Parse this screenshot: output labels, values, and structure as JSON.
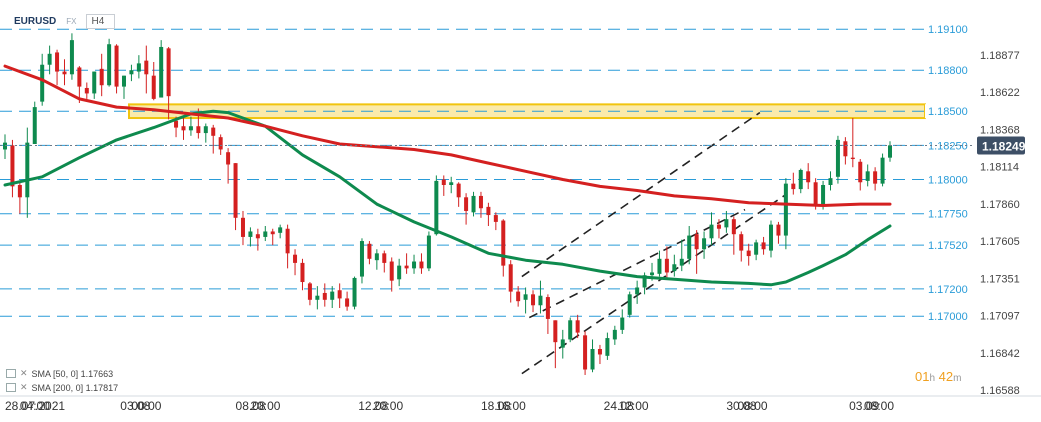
{
  "header": {
    "symbol": "EURUSD",
    "market": "FX",
    "timeframe": "H4"
  },
  "indicators": [
    {
      "label": "SMA [50, 0] 1.17663",
      "color": "#0e8a4e"
    },
    {
      "label": "SMA [200, 0] 1.17817",
      "color": "#d42020"
    }
  ],
  "countdown": {
    "hours": "01",
    "h_unit": "h",
    "minutes": "42",
    "m_unit": "m"
  },
  "colors": {
    "bull": "#0e8a4e",
    "bear": "#d42020",
    "level": "#2a9cd8",
    "zone": "#f1c40f",
    "price": "#3d4f66"
  },
  "chart_data": {
    "type": "candlestick",
    "title": "",
    "xlabel": "",
    "ylabel": "",
    "ylim": [
      1.1646,
      1.1916
    ],
    "grid": false,
    "y_tick_labels": [
      "1.18877",
      "1.18622",
      "1.18368",
      "1.18114",
      "1.17860",
      "1.17605",
      "1.17351",
      "1.17097",
      "1.16842",
      "1.16588"
    ],
    "x_tick_labels": [
      "28.07.2021",
      "04:00",
      "03.08",
      "00:00",
      "08.08",
      "20:00",
      "12.08",
      "20:00",
      "18.08",
      "16:00",
      "24.08",
      "12:00",
      "30.08",
      "08:00",
      "03.09",
      "08:00"
    ],
    "x_tick_positions": [
      0,
      4,
      31,
      34,
      62,
      66,
      95,
      99,
      128,
      132,
      161,
      165,
      194,
      197,
      227,
      231
    ],
    "levels": [
      {
        "value": 1.191,
        "label": "1.19100"
      },
      {
        "value": 1.188,
        "label": "1.18800"
      },
      {
        "value": 1.185,
        "label": "1.18500"
      },
      {
        "value": 1.1825,
        "label": "1.18250"
      },
      {
        "value": 1.18,
        "label": "1.18000"
      },
      {
        "value": 1.1775,
        "label": "1.17750"
      },
      {
        "value": 1.1752,
        "label": "1.17520"
      },
      {
        "value": 1.172,
        "label": "1.17200"
      },
      {
        "value": 1.17,
        "label": "1.17000"
      }
    ],
    "zone": {
      "low": 1.1845,
      "high": 1.1855
    },
    "current_price": {
      "value": 1.18249,
      "label": "1.18249"
    },
    "channel": {
      "lower": [
        [
          139,
          1.1658
        ],
        [
          210,
          1.1789
        ]
      ],
      "upper": [
        [
          139,
          1.1729
        ],
        [
          203,
          1.1849
        ]
      ],
      "middle": [
        [
          141,
          1.1699
        ],
        [
          199,
          1.1778
        ]
      ]
    },
    "candles": [
      {
        "i": 0,
        "o": 1.1822,
        "c": 1.1827,
        "h": 1.1833,
        "l": 1.1815
      },
      {
        "i": 2,
        "o": 1.1825,
        "c": 1.1795,
        "h": 1.1829,
        "l": 1.1787
      },
      {
        "i": 4,
        "o": 1.1796,
        "c": 1.1787,
        "h": 1.1798,
        "l": 1.1775
      },
      {
        "i": 6,
        "o": 1.1787,
        "c": 1.1827,
        "h": 1.1838,
        "l": 1.1772
      },
      {
        "i": 8,
        "o": 1.1826,
        "c": 1.1853,
        "h": 1.1857,
        "l": 1.1826
      },
      {
        "i": 10,
        "o": 1.1857,
        "c": 1.1884,
        "h": 1.1892,
        "l": 1.1854
      },
      {
        "i": 12,
        "o": 1.1884,
        "c": 1.1892,
        "h": 1.1898,
        "l": 1.1877
      },
      {
        "i": 14,
        "o": 1.1893,
        "c": 1.1879,
        "h": 1.1895,
        "l": 1.1869
      },
      {
        "i": 16,
        "o": 1.1879,
        "c": 1.1877,
        "h": 1.1888,
        "l": 1.1869
      },
      {
        "i": 18,
        "o": 1.1877,
        "c": 1.1902,
        "h": 1.1907,
        "l": 1.1873
      },
      {
        "i": 20,
        "o": 1.1882,
        "c": 1.1868,
        "h": 1.1883,
        "l": 1.1856
      },
      {
        "i": 22,
        "o": 1.1867,
        "c": 1.1863,
        "h": 1.1871,
        "l": 1.1859
      },
      {
        "i": 24,
        "o": 1.1863,
        "c": 1.1879,
        "h": 1.1879,
        "l": 1.1859
      },
      {
        "i": 26,
        "o": 1.1881,
        "c": 1.1869,
        "h": 1.1892,
        "l": 1.1861
      },
      {
        "i": 28,
        "o": 1.1869,
        "c": 1.1899,
        "h": 1.1903,
        "l": 1.1868
      },
      {
        "i": 30,
        "o": 1.1898,
        "c": 1.1868,
        "h": 1.1899,
        "l": 1.1863
      },
      {
        "i": 32,
        "o": 1.1868,
        "c": 1.1876,
        "h": 1.1876,
        "l": 1.1859
      },
      {
        "i": 34,
        "o": 1.1877,
        "c": 1.188,
        "h": 1.1884,
        "l": 1.1872
      },
      {
        "i": 36,
        "o": 1.1879,
        "c": 1.1885,
        "h": 1.1891,
        "l": 1.1874
      },
      {
        "i": 38,
        "o": 1.1887,
        "c": 1.1877,
        "h": 1.1898,
        "l": 1.1863
      },
      {
        "i": 40,
        "o": 1.1876,
        "c": 1.1859,
        "h": 1.1886,
        "l": 1.1858
      },
      {
        "i": 42,
        "o": 1.186,
        "c": 1.1897,
        "h": 1.1902,
        "l": 1.186
      },
      {
        "i": 44,
        "o": 1.1896,
        "c": 1.1861,
        "h": 1.1897,
        "l": 1.1844
      },
      {
        "i": 46,
        "o": 1.1843,
        "c": 1.1838,
        "h": 1.1846,
        "l": 1.1831
      },
      {
        "i": 48,
        "o": 1.1839,
        "c": 1.1836,
        "h": 1.1846,
        "l": 1.1829
      },
      {
        "i": 50,
        "o": 1.1836,
        "c": 1.1839,
        "h": 1.1846,
        "l": 1.1832
      },
      {
        "i": 52,
        "o": 1.1839,
        "c": 1.1834,
        "h": 1.1852,
        "l": 1.183
      },
      {
        "i": 54,
        "o": 1.1834,
        "c": 1.1839,
        "h": 1.1841,
        "l": 1.1827
      },
      {
        "i": 56,
        "o": 1.1838,
        "c": 1.1832,
        "h": 1.184,
        "l": 1.1819
      },
      {
        "i": 58,
        "o": 1.1831,
        "c": 1.1822,
        "h": 1.1833,
        "l": 1.1818
      },
      {
        "i": 60,
        "o": 1.182,
        "c": 1.1811,
        "h": 1.1823,
        "l": 1.1797
      },
      {
        "i": 62,
        "o": 1.1812,
        "c": 1.1772,
        "h": 1.1812,
        "l": 1.1763
      },
      {
        "i": 64,
        "o": 1.1772,
        "c": 1.1758,
        "h": 1.1777,
        "l": 1.1752
      },
      {
        "i": 66,
        "o": 1.1758,
        "c": 1.1762,
        "h": 1.1765,
        "l": 1.1751
      },
      {
        "i": 68,
        "o": 1.176,
        "c": 1.1757,
        "h": 1.1764,
        "l": 1.1748
      },
      {
        "i": 70,
        "o": 1.1758,
        "c": 1.1762,
        "h": 1.1766,
        "l": 1.1755
      },
      {
        "i": 72,
        "o": 1.1762,
        "c": 1.176,
        "h": 1.1764,
        "l": 1.1752
      },
      {
        "i": 74,
        "o": 1.1761,
        "c": 1.1765,
        "h": 1.1767,
        "l": 1.1757
      },
      {
        "i": 76,
        "o": 1.1764,
        "c": 1.1746,
        "h": 1.1767,
        "l": 1.1735
      },
      {
        "i": 78,
        "o": 1.1745,
        "c": 1.1739,
        "h": 1.1749,
        "l": 1.173
      },
      {
        "i": 80,
        "o": 1.1739,
        "c": 1.1725,
        "h": 1.1742,
        "l": 1.1719
      },
      {
        "i": 82,
        "o": 1.1724,
        "c": 1.1712,
        "h": 1.1725,
        "l": 1.1708
      },
      {
        "i": 84,
        "o": 1.1712,
        "c": 1.1715,
        "h": 1.1722,
        "l": 1.1705
      },
      {
        "i": 86,
        "o": 1.1717,
        "c": 1.1712,
        "h": 1.1724,
        "l": 1.1707
      },
      {
        "i": 88,
        "o": 1.1712,
        "c": 1.1718,
        "h": 1.1722,
        "l": 1.1706
      },
      {
        "i": 90,
        "o": 1.1719,
        "c": 1.1713,
        "h": 1.1724,
        "l": 1.1706
      },
      {
        "i": 92,
        "o": 1.1713,
        "c": 1.1707,
        "h": 1.1718,
        "l": 1.1704
      },
      {
        "i": 94,
        "o": 1.1707,
        "c": 1.1728,
        "h": 1.1729,
        "l": 1.1705
      },
      {
        "i": 96,
        "o": 1.1729,
        "c": 1.1755,
        "h": 1.1757,
        "l": 1.1724
      },
      {
        "i": 98,
        "o": 1.1753,
        "c": 1.1742,
        "h": 1.1755,
        "l": 1.1738
      },
      {
        "i": 100,
        "o": 1.1741,
        "c": 1.1746,
        "h": 1.1749,
        "l": 1.1734
      },
      {
        "i": 102,
        "o": 1.1746,
        "c": 1.1739,
        "h": 1.1748,
        "l": 1.1732
      },
      {
        "i": 104,
        "o": 1.174,
        "c": 1.1726,
        "h": 1.1743,
        "l": 1.1718
      },
      {
        "i": 106,
        "o": 1.1727,
        "c": 1.1737,
        "h": 1.1742,
        "l": 1.1722
      },
      {
        "i": 108,
        "o": 1.1737,
        "c": 1.1735,
        "h": 1.1746,
        "l": 1.1731
      },
      {
        "i": 110,
        "o": 1.1735,
        "c": 1.174,
        "h": 1.1745,
        "l": 1.1731
      },
      {
        "i": 112,
        "o": 1.174,
        "c": 1.1735,
        "h": 1.1746,
        "l": 1.1731
      },
      {
        "i": 114,
        "o": 1.1735,
        "c": 1.1759,
        "h": 1.1762,
        "l": 1.1733
      },
      {
        "i": 116,
        "o": 1.176,
        "c": 1.1799,
        "h": 1.1803,
        "l": 1.1759
      },
      {
        "i": 118,
        "o": 1.18,
        "c": 1.1796,
        "h": 1.1803,
        "l": 1.1788
      },
      {
        "i": 120,
        "o": 1.1796,
        "c": 1.1798,
        "h": 1.1802,
        "l": 1.179
      },
      {
        "i": 122,
        "o": 1.1797,
        "c": 1.1787,
        "h": 1.1798,
        "l": 1.178
      },
      {
        "i": 124,
        "o": 1.1787,
        "c": 1.1777,
        "h": 1.179,
        "l": 1.1767
      },
      {
        "i": 126,
        "o": 1.1776,
        "c": 1.1788,
        "h": 1.1791,
        "l": 1.1773
      },
      {
        "i": 128,
        "o": 1.1788,
        "c": 1.1779,
        "h": 1.1791,
        "l": 1.1772
      },
      {
        "i": 130,
        "o": 1.178,
        "c": 1.1774,
        "h": 1.1783,
        "l": 1.1766
      },
      {
        "i": 132,
        "o": 1.1774,
        "c": 1.1769,
        "h": 1.1776,
        "l": 1.1763
      },
      {
        "i": 134,
        "o": 1.177,
        "c": 1.1737,
        "h": 1.1771,
        "l": 1.1729
      },
      {
        "i": 136,
        "o": 1.1738,
        "c": 1.1718,
        "h": 1.1741,
        "l": 1.171
      },
      {
        "i": 138,
        "o": 1.1718,
        "c": 1.1711,
        "h": 1.1722,
        "l": 1.1707
      },
      {
        "i": 140,
        "o": 1.1712,
        "c": 1.1716,
        "h": 1.1721,
        "l": 1.1702
      },
      {
        "i": 142,
        "o": 1.1716,
        "c": 1.1708,
        "h": 1.1719,
        "l": 1.1703
      },
      {
        "i": 144,
        "o": 1.1708,
        "c": 1.1715,
        "h": 1.1726,
        "l": 1.1702
      },
      {
        "i": 146,
        "o": 1.1714,
        "c": 1.1698,
        "h": 1.1716,
        "l": 1.1687
      },
      {
        "i": 148,
        "o": 1.1697,
        "c": 1.1681,
        "h": 1.1697,
        "l": 1.1662
      },
      {
        "i": 150,
        "o": 1.1677,
        "c": 1.1683,
        "h": 1.169,
        "l": 1.1669
      },
      {
        "i": 152,
        "o": 1.1683,
        "c": 1.1697,
        "h": 1.1699,
        "l": 1.1681
      },
      {
        "i": 154,
        "o": 1.1697,
        "c": 1.1688,
        "h": 1.1701,
        "l": 1.1684
      },
      {
        "i": 156,
        "o": 1.1686,
        "c": 1.1661,
        "h": 1.1689,
        "l": 1.1657
      },
      {
        "i": 158,
        "o": 1.1661,
        "c": 1.1676,
        "h": 1.1683,
        "l": 1.1659
      },
      {
        "i": 160,
        "o": 1.1676,
        "c": 1.1672,
        "h": 1.1679,
        "l": 1.1665
      },
      {
        "i": 162,
        "o": 1.1671,
        "c": 1.1684,
        "h": 1.1688,
        "l": 1.1668
      },
      {
        "i": 164,
        "o": 1.1683,
        "c": 1.169,
        "h": 1.1693,
        "l": 1.1679
      },
      {
        "i": 166,
        "o": 1.169,
        "c": 1.1699,
        "h": 1.1705,
        "l": 1.1687
      },
      {
        "i": 168,
        "o": 1.1701,
        "c": 1.1716,
        "h": 1.1718,
        "l": 1.1699
      },
      {
        "i": 170,
        "o": 1.1716,
        "c": 1.1721,
        "h": 1.1726,
        "l": 1.1709
      },
      {
        "i": 172,
        "o": 1.1721,
        "c": 1.173,
        "h": 1.1732,
        "l": 1.1716
      },
      {
        "i": 174,
        "o": 1.173,
        "c": 1.1732,
        "h": 1.1739,
        "l": 1.1726
      },
      {
        "i": 176,
        "o": 1.1731,
        "c": 1.1742,
        "h": 1.1748,
        "l": 1.1729
      },
      {
        "i": 178,
        "o": 1.1742,
        "c": 1.1732,
        "h": 1.1751,
        "l": 1.1728
      },
      {
        "i": 180,
        "o": 1.1733,
        "c": 1.1738,
        "h": 1.1745,
        "l": 1.1729
      },
      {
        "i": 182,
        "o": 1.1737,
        "c": 1.1742,
        "h": 1.1756,
        "l": 1.1733
      },
      {
        "i": 184,
        "o": 1.1742,
        "c": 1.1759,
        "h": 1.1766,
        "l": 1.1738
      },
      {
        "i": 186,
        "o": 1.176,
        "c": 1.1749,
        "h": 1.1763,
        "l": 1.1731
      },
      {
        "i": 188,
        "o": 1.1749,
        "c": 1.1757,
        "h": 1.1762,
        "l": 1.1742
      },
      {
        "i": 190,
        "o": 1.1757,
        "c": 1.1767,
        "h": 1.1776,
        "l": 1.1752
      },
      {
        "i": 192,
        "o": 1.1767,
        "c": 1.1764,
        "h": 1.1771,
        "l": 1.1757
      },
      {
        "i": 194,
        "o": 1.1765,
        "c": 1.1771,
        "h": 1.1777,
        "l": 1.1761
      },
      {
        "i": 196,
        "o": 1.1771,
        "c": 1.176,
        "h": 1.1773,
        "l": 1.1745
      },
      {
        "i": 198,
        "o": 1.176,
        "c": 1.1748,
        "h": 1.1762,
        "l": 1.174
      },
      {
        "i": 200,
        "o": 1.1748,
        "c": 1.1744,
        "h": 1.1753,
        "l": 1.1737
      },
      {
        "i": 202,
        "o": 1.1745,
        "c": 1.1754,
        "h": 1.1756,
        "l": 1.1741
      },
      {
        "i": 204,
        "o": 1.1754,
        "c": 1.1749,
        "h": 1.1758,
        "l": 1.1745
      },
      {
        "i": 206,
        "o": 1.1748,
        "c": 1.1767,
        "h": 1.177,
        "l": 1.1743
      },
      {
        "i": 208,
        "o": 1.1767,
        "c": 1.1759,
        "h": 1.1769,
        "l": 1.1753
      },
      {
        "i": 210,
        "o": 1.1759,
        "c": 1.1797,
        "h": 1.1801,
        "l": 1.1749
      },
      {
        "i": 212,
        "o": 1.1797,
        "c": 1.1793,
        "h": 1.1805,
        "l": 1.1789
      },
      {
        "i": 214,
        "o": 1.1793,
        "c": 1.1807,
        "h": 1.1808,
        "l": 1.179
      },
      {
        "i": 216,
        "o": 1.1806,
        "c": 1.1798,
        "h": 1.1812,
        "l": 1.1793
      },
      {
        "i": 218,
        "o": 1.1798,
        "c": 1.1781,
        "h": 1.1801,
        "l": 1.1778
      },
      {
        "i": 220,
        "o": 1.1781,
        "c": 1.1796,
        "h": 1.1799,
        "l": 1.1778
      },
      {
        "i": 222,
        "o": 1.1796,
        "c": 1.1801,
        "h": 1.1806,
        "l": 1.1792
      },
      {
        "i": 224,
        "o": 1.1802,
        "c": 1.1829,
        "h": 1.1832,
        "l": 1.1797
      },
      {
        "i": 226,
        "o": 1.1828,
        "c": 1.1817,
        "h": 1.1831,
        "l": 1.1811
      },
      {
        "i": 228,
        "o": 1.1816,
        "c": 1.1815,
        "h": 1.1845,
        "l": 1.1809
      },
      {
        "i": 230,
        "o": 1.1813,
        "c": 1.1798,
        "h": 1.1815,
        "l": 1.1792
      },
      {
        "i": 232,
        "o": 1.1799,
        "c": 1.1806,
        "h": 1.1811,
        "l": 1.1795
      },
      {
        "i": 234,
        "o": 1.1806,
        "c": 1.1797,
        "h": 1.1809,
        "l": 1.1792
      },
      {
        "i": 236,
        "o": 1.1797,
        "c": 1.1816,
        "h": 1.1819,
        "l": 1.1795
      },
      {
        "i": 238,
        "o": 1.1816,
        "c": 1.1825,
        "h": 1.1828,
        "l": 1.1813
      }
    ],
    "series": [
      {
        "name": "SMA [50, 0] 1.17663",
        "x": [
          0,
          10,
          20,
          30,
          40,
          50,
          56,
          60,
          70,
          80,
          90,
          100,
          110,
          120,
          130,
          140,
          150,
          160,
          170,
          180,
          190,
          200,
          206,
          210,
          216,
          220,
          226,
          232,
          238
        ],
        "y": [
          1.1796,
          1.1802,
          1.1816,
          1.1829,
          1.1838,
          1.1848,
          1.185,
          1.1849,
          1.1839,
          1.1818,
          1.1802,
          1.1782,
          1.1769,
          1.1758,
          1.1746,
          1.1741,
          1.1738,
          1.1733,
          1.1729,
          1.1727,
          1.1725,
          1.1724,
          1.1723,
          1.1725,
          1.1732,
          1.1737,
          1.1745,
          1.1756,
          1.1766
        ]
      },
      {
        "name": "SMA [200, 0] 1.17817",
        "x": [
          0,
          10,
          20,
          30,
          40,
          50,
          60,
          70,
          80,
          90,
          100,
          110,
          120,
          130,
          140,
          150,
          160,
          170,
          180,
          190,
          200,
          210,
          220,
          230,
          238
        ],
        "y": [
          1.1883,
          1.1873,
          1.1859,
          1.1853,
          1.1851,
          1.1848,
          1.1845,
          1.1839,
          1.1832,
          1.1826,
          1.1824,
          1.1822,
          1.1818,
          1.1812,
          1.1806,
          1.18,
          1.1795,
          1.1792,
          1.1788,
          1.1786,
          1.1783,
          1.1782,
          1.1781,
          1.1782,
          1.1782
        ]
      }
    ]
  }
}
